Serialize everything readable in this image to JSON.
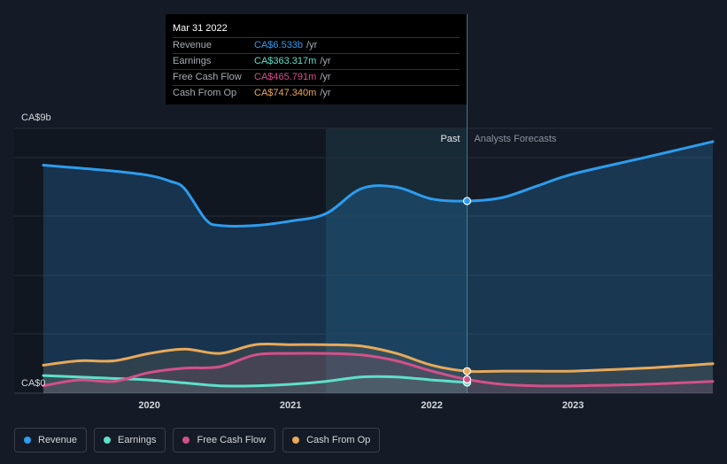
{
  "tooltip": {
    "date": "Mar 31 2022",
    "rows": [
      {
        "label": "Revenue",
        "value": "CA$6.533b",
        "unit": "/yr",
        "color": "#2d9cee"
      },
      {
        "label": "Earnings",
        "value": "CA$363.317m",
        "unit": "/yr",
        "color": "#5ee0c9"
      },
      {
        "label": "Free Cash Flow",
        "value": "CA$465.791m",
        "unit": "/yr",
        "color": "#d4508a"
      },
      {
        "label": "Cash From Op",
        "value": "CA$747.340m",
        "unit": "/yr",
        "color": "#e8a95a"
      }
    ]
  },
  "legend": [
    {
      "label": "Revenue",
      "color": "#2d9cee"
    },
    {
      "label": "Earnings",
      "color": "#5ee0c9"
    },
    {
      "label": "Free Cash Flow",
      "color": "#d4508a"
    },
    {
      "label": "Cash From Op",
      "color": "#e8a95a"
    }
  ],
  "chart_data": {
    "type": "line",
    "ylim": [
      0,
      9
    ],
    "y_unit": "CA$ billions",
    "y_tick_labels": [
      "CA$0",
      "CA$9b"
    ],
    "x_ticks": [
      2020,
      2021,
      2022,
      2023
    ],
    "xlim": [
      2019.25,
      2023.99
    ],
    "past_label": "Past",
    "forecast_label": "Analysts Forecasts",
    "past_end": 2022.25,
    "highlight_start": 2021.25,
    "series": [
      {
        "name": "Revenue",
        "color": "#2d9cee",
        "x": [
          2019.25,
          2019.5,
          2019.75,
          2020.0,
          2020.15,
          2020.25,
          2020.4,
          2020.5,
          2020.75,
          2021.0,
          2021.25,
          2021.5,
          2021.75,
          2022.0,
          2022.25,
          2022.5,
          2022.75,
          2023.0,
          2023.5,
          2023.99
        ],
        "y": [
          7.75,
          7.65,
          7.55,
          7.4,
          7.2,
          6.95,
          5.9,
          5.7,
          5.7,
          5.85,
          6.1,
          6.95,
          7.0,
          6.6,
          6.533,
          6.65,
          7.05,
          7.45,
          8.0,
          8.55
        ]
      },
      {
        "name": "Earnings",
        "color": "#5ee0c9",
        "x": [
          2019.25,
          2019.5,
          2019.75,
          2020.0,
          2020.25,
          2020.5,
          2020.75,
          2021.0,
          2021.25,
          2021.5,
          2021.75,
          2022.0,
          2022.25
        ],
        "y": [
          0.6,
          0.55,
          0.5,
          0.45,
          0.35,
          0.25,
          0.25,
          0.3,
          0.4,
          0.55,
          0.55,
          0.45,
          0.363
        ]
      },
      {
        "name": "Free Cash Flow",
        "color": "#d4508a",
        "x": [
          2019.25,
          2019.5,
          2019.75,
          2020.0,
          2020.25,
          2020.5,
          2020.75,
          2021.0,
          2021.25,
          2021.5,
          2021.75,
          2022.0,
          2022.25,
          2022.5,
          2022.75,
          2023.0,
          2023.5,
          2023.99
        ],
        "y": [
          0.25,
          0.45,
          0.4,
          0.7,
          0.85,
          0.9,
          1.3,
          1.35,
          1.35,
          1.3,
          1.1,
          0.75,
          0.466,
          0.3,
          0.25,
          0.25,
          0.3,
          0.4
        ]
      },
      {
        "name": "Cash From Op",
        "color": "#e8a95a",
        "x": [
          2019.25,
          2019.5,
          2019.75,
          2020.0,
          2020.25,
          2020.5,
          2020.75,
          2021.0,
          2021.25,
          2021.5,
          2021.75,
          2022.0,
          2022.25,
          2022.5,
          2022.75,
          2023.0,
          2023.5,
          2023.99
        ],
        "y": [
          0.95,
          1.1,
          1.1,
          1.35,
          1.5,
          1.35,
          1.65,
          1.65,
          1.65,
          1.6,
          1.35,
          0.95,
          0.747,
          0.75,
          0.75,
          0.75,
          0.85,
          1.0
        ]
      }
    ]
  }
}
